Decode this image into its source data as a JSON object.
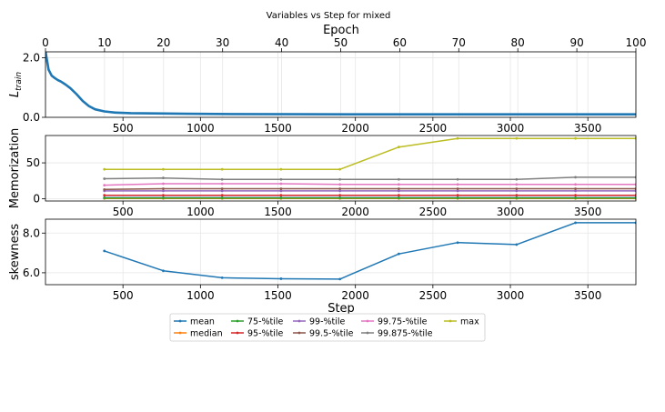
{
  "chart_data": {
    "type": "line",
    "title": "Variables vs Step for mixed",
    "top_xlabel": "Epoch",
    "epoch_ticks": [
      "0",
      "10",
      "20",
      "30",
      "40",
      "50",
      "60",
      "70",
      "80",
      "90",
      "100"
    ],
    "xlabel": "Step",
    "step_range": [
      0,
      3810
    ],
    "step_ticks": [
      "500",
      "1000",
      "1500",
      "2000",
      "2500",
      "3000",
      "3500"
    ],
    "colors": {
      "mean": "#1f77b4",
      "median": "#ff7f0e",
      "p75": "#2ca02c",
      "p95": "#d62728",
      "p99": "#9467bd",
      "p995": "#8c564b",
      "p9975": "#e377c2",
      "p99875": "#7f7f7f",
      "max": "#bcbd22"
    },
    "panels": [
      {
        "id": "train",
        "ylabel": "L_train",
        "ylabel_main": "L",
        "ylabel_sub": "train",
        "ylim": [
          0,
          2.2
        ],
        "yticks": [
          "0.0",
          "2.0"
        ],
        "series": [
          {
            "name": "train loss",
            "x": [
              0,
              20,
              40,
              60,
              80,
              100,
              130,
              160,
              200,
              240,
              280,
              320,
              380,
              450,
              550,
              700,
              900,
              1200,
              1600,
              2200,
              3000,
              3810
            ],
            "y": [
              2.22,
              1.6,
              1.4,
              1.32,
              1.25,
              1.2,
              1.1,
              0.98,
              0.78,
              0.55,
              0.38,
              0.27,
              0.2,
              0.16,
              0.14,
              0.13,
              0.12,
              0.11,
              0.105,
              0.1,
              0.1,
              0.1
            ]
          }
        ]
      },
      {
        "id": "memorization",
        "ylabel": "Memorization",
        "ylim": [
          -3,
          88
        ],
        "yticks": [
          "0",
          "50"
        ],
        "x": [
          380,
          760,
          1140,
          1520,
          1900,
          2280,
          2660,
          3040,
          3420,
          3810
        ],
        "series": [
          {
            "name": "mean",
            "y": [
              1.5,
              1.5,
              1.5,
              1.5,
              1.5,
              1.5,
              1.5,
              1.5,
              1.5,
              1.5
            ]
          },
          {
            "name": "median",
            "y": [
              0.5,
              0.5,
              0.5,
              0.5,
              0.5,
              0.5,
              0.5,
              0.5,
              0.5,
              0.5
            ]
          },
          {
            "name": "75-%tile",
            "y": [
              1.2,
              1.2,
              1.2,
              1.2,
              1.2,
              1.2,
              1.2,
              1.2,
              1.2,
              1.2
            ]
          },
          {
            "name": "95-%tile",
            "y": [
              5,
              5,
              5,
              5,
              5,
              5,
              5,
              5,
              5,
              5
            ]
          },
          {
            "name": "99-%tile",
            "y": [
              11,
              11,
              11,
              11,
              11,
              11,
              11,
              11,
              11,
              11
            ]
          },
          {
            "name": "99.5-%tile",
            "y": [
              13,
              14,
              14,
              14,
              14,
              14,
              14,
              14,
              14,
              14
            ]
          },
          {
            "name": "99.75-%tile",
            "y": [
              19,
              21,
              21,
              21,
              20,
              20,
              20,
              20,
              20,
              20
            ]
          },
          {
            "name": "99.875-%tile",
            "y": [
              28,
              29,
              27,
              27,
              27,
              27,
              27,
              27,
              30,
              30
            ]
          },
          {
            "name": "max",
            "y": [
              41,
              41,
              41,
              41,
              41,
              72,
              84,
              84,
              84,
              84
            ]
          }
        ]
      },
      {
        "id": "skewness",
        "ylabel": "skewness",
        "ylim": [
          5.4,
          8.7
        ],
        "yticks": [
          "6.0",
          "8.0"
        ],
        "x": [
          380,
          760,
          1140,
          1520,
          1900,
          2280,
          2660,
          3040,
          3420,
          3810
        ],
        "series": [
          {
            "name": "mean",
            "y": [
              7.1,
              6.1,
              5.75,
              5.7,
              5.68,
              6.95,
              7.52,
              7.42,
              8.52,
              8.52
            ]
          }
        ]
      }
    ],
    "legend": [
      [
        "mean",
        "median"
      ],
      [
        "75-%tile",
        "95-%tile"
      ],
      [
        "99-%tile",
        "99.5-%tile"
      ],
      [
        "99.75-%tile",
        "99.875-%tile"
      ],
      [
        "max"
      ]
    ]
  }
}
